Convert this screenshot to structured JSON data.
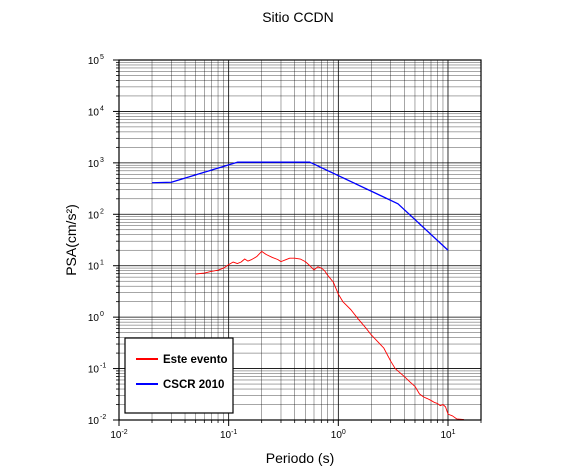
{
  "chart_data": {
    "type": "line",
    "title": "Sitio CCDN",
    "xlabel": "Periodo (s)",
    "ylabel": "PSA(cm/s²)",
    "x_scale": "log",
    "y_scale": "log",
    "xlim": [
      0.01,
      20
    ],
    "ylim": [
      0.01,
      100000
    ],
    "grid": true,
    "legend_position": "bottom-left",
    "x_ticks": [
      {
        "value": 0.01,
        "base": "10",
        "exp": "-2"
      },
      {
        "value": 0.1,
        "base": "10",
        "exp": "-1"
      },
      {
        "value": 1,
        "base": "10",
        "exp": "0"
      },
      {
        "value": 10,
        "base": "10",
        "exp": "1"
      }
    ],
    "y_ticks": [
      {
        "value": 0.01,
        "base": "10",
        "exp": "-2"
      },
      {
        "value": 0.1,
        "base": "10",
        "exp": "-1"
      },
      {
        "value": 1,
        "base": "10",
        "exp": "0"
      },
      {
        "value": 10,
        "base": "10",
        "exp": "1"
      },
      {
        "value": 100,
        "base": "10",
        "exp": "2"
      },
      {
        "value": 1000,
        "base": "10",
        "exp": "3"
      },
      {
        "value": 10000,
        "base": "10",
        "exp": "4"
      },
      {
        "value": 100000,
        "base": "10",
        "exp": "5"
      }
    ],
    "series": [
      {
        "name": "Este evento",
        "color": "#ff0000",
        "points": [
          [
            0.05,
            6.9
          ],
          [
            0.06,
            7.2
          ],
          [
            0.07,
            7.8
          ],
          [
            0.08,
            8.2
          ],
          [
            0.09,
            9.0
          ],
          [
            0.1,
            10.5
          ],
          [
            0.11,
            11.8
          ],
          [
            0.12,
            11.0
          ],
          [
            0.13,
            11.8
          ],
          [
            0.14,
            13.5
          ],
          [
            0.15,
            12.3
          ],
          [
            0.16,
            13.0
          ],
          [
            0.18,
            15.0
          ],
          [
            0.2,
            19.0
          ],
          [
            0.22,
            16.5
          ],
          [
            0.25,
            14.5
          ],
          [
            0.28,
            13.2
          ],
          [
            0.3,
            12.0
          ],
          [
            0.33,
            13.0
          ],
          [
            0.36,
            14.0
          ],
          [
            0.4,
            14.0
          ],
          [
            0.45,
            13.5
          ],
          [
            0.5,
            12.0
          ],
          [
            0.55,
            10.0
          ],
          [
            0.6,
            8.3
          ],
          [
            0.65,
            9.5
          ],
          [
            0.7,
            9.0
          ],
          [
            0.75,
            8.0
          ],
          [
            0.8,
            6.5
          ],
          [
            0.9,
            4.8
          ],
          [
            1.0,
            2.8
          ],
          [
            1.1,
            2.0
          ],
          [
            1.3,
            1.4
          ],
          [
            1.5,
            0.95
          ],
          [
            1.8,
            0.6
          ],
          [
            2.0,
            0.45
          ],
          [
            2.3,
            0.33
          ],
          [
            2.6,
            0.25
          ],
          [
            3.0,
            0.14
          ],
          [
            3.3,
            0.1
          ],
          [
            3.6,
            0.085
          ],
          [
            4.0,
            0.07
          ],
          [
            4.5,
            0.055
          ],
          [
            5.0,
            0.045
          ],
          [
            5.5,
            0.032
          ],
          [
            6.0,
            0.028
          ],
          [
            6.5,
            0.026
          ],
          [
            7.0,
            0.024
          ],
          [
            7.5,
            0.022
          ],
          [
            8.0,
            0.021
          ],
          [
            8.5,
            0.019
          ],
          [
            9.0,
            0.02
          ],
          [
            9.5,
            0.018
          ],
          [
            10.0,
            0.013
          ],
          [
            11.0,
            0.012
          ],
          [
            12.0,
            0.0105
          ],
          [
            14.0,
            0.0102
          ]
        ]
      },
      {
        "name": "CSCR 2010",
        "color": "#0000ff",
        "points": [
          [
            0.02,
            410
          ],
          [
            0.03,
            420
          ],
          [
            0.12,
            1030
          ],
          [
            0.55,
            1030
          ],
          [
            3.5,
            160
          ],
          [
            10.0,
            20
          ]
        ]
      }
    ]
  }
}
